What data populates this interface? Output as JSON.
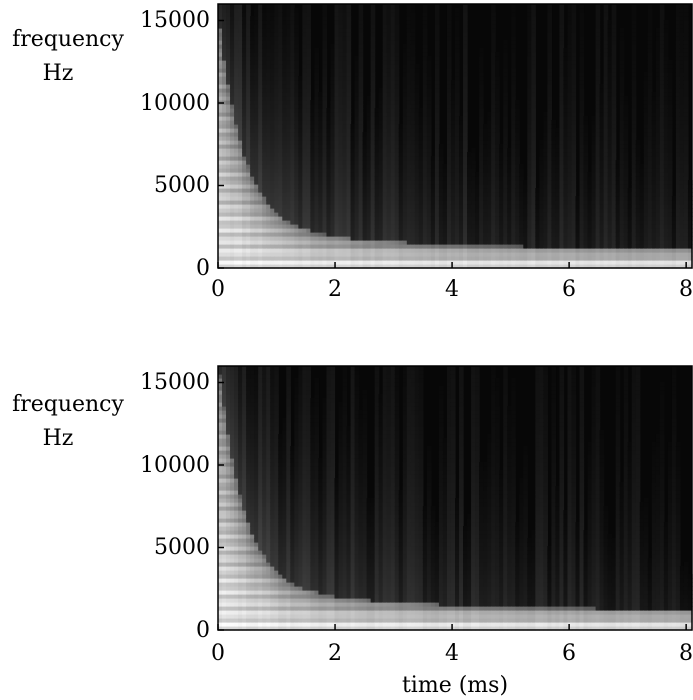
{
  "chart_data": [
    {
      "type": "heatmap",
      "title": "",
      "ylabel": [
        "frequency",
        "Hz"
      ],
      "xlabel": "",
      "xlim": [
        0,
        8.1
      ],
      "ylim": [
        0,
        16000
      ],
      "xticks": [
        0,
        2,
        4,
        6,
        8
      ],
      "xtick_labels": [
        "0",
        "2",
        "4",
        "6",
        "8"
      ],
      "yticks": [
        0,
        5000,
        10000,
        15000
      ],
      "ytick_labels": [
        "0",
        "5000",
        "10000",
        "15000"
      ],
      "colormap": "grayscale",
      "colors": {
        "high": "#ffffff",
        "low": "#000000"
      }
    },
    {
      "type": "heatmap",
      "title": "",
      "ylabel": [
        "frequency",
        "Hz"
      ],
      "xlabel": "time (ms)",
      "xlim": [
        0,
        8.1
      ],
      "ylim": [
        0,
        16000
      ],
      "xticks": [
        0,
        2,
        4,
        6,
        8
      ],
      "xtick_labels": [
        "0",
        "2",
        "4",
        "6",
        "8"
      ],
      "yticks": [
        0,
        5000,
        10000,
        15000
      ],
      "ytick_labels": [
        "0",
        "5000",
        "10000",
        "15000"
      ],
      "colormap": "grayscale",
      "colors": {
        "high": "#ffffff",
        "low": "#000000"
      }
    }
  ]
}
